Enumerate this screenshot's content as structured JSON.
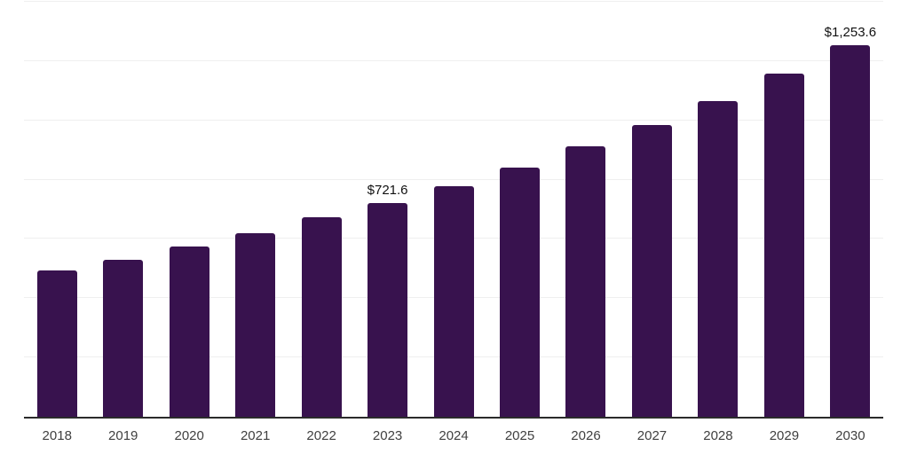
{
  "chart_data": {
    "type": "bar",
    "title": "",
    "xlabel": "",
    "ylabel": "",
    "categories": [
      "2018",
      "2019",
      "2020",
      "2021",
      "2022",
      "2023",
      "2024",
      "2025",
      "2026",
      "2027",
      "2028",
      "2029",
      "2030"
    ],
    "values": [
      495.1,
      529.7,
      573.5,
      618.2,
      671.9,
      721.6,
      778.2,
      840.8,
      911.1,
      985.6,
      1066.1,
      1156.6,
      1253.6
    ],
    "data_labels": {
      "2023": "$721.6",
      "2030": "$1,253.6"
    },
    "ylim": [
      0,
      1400
    ],
    "gridline_step": 200,
    "grid": true,
    "legend": "none",
    "y_tick_labels_visible": false,
    "colors": {
      "bar": "#38124e",
      "gridline": "#efefef",
      "axis_line": "#2b2b2b",
      "x_label_text": "#404040",
      "value_label_text": "#111111",
      "background": "#ffffff"
    }
  }
}
